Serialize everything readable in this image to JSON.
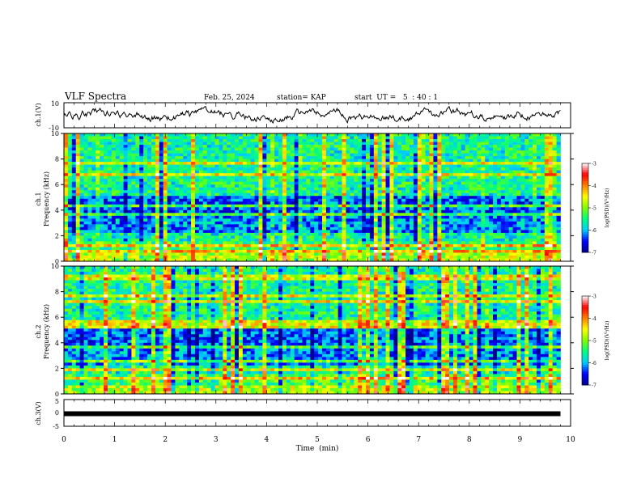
{
  "header": {
    "title": "VLF Spectra",
    "date": "Feb. 25, 2024",
    "station": "station= KAP",
    "start": "start  UT =   5  : 40 : 1"
  },
  "colors": {
    "background": "#ffffff",
    "axis": "#000000",
    "colormap": [
      "#00008b",
      "#0000ff",
      "#00ccff",
      "#00ff80",
      "#80ff00",
      "#ffff00",
      "#ff8000",
      "#ff0000",
      "#ffffff"
    ]
  },
  "chart_data": [
    {
      "panel": "ch1-waveform",
      "type": "line",
      "ylabel": "ch.1(V)",
      "ylim": [
        -10,
        10
      ],
      "yticks": [
        "10",
        "-10"
      ],
      "xlim": [
        0,
        10
      ],
      "x_units": "min",
      "envelope_note": "continuous noisy trace, approx between -7 and +7 V"
    },
    {
      "panel": "ch1-spectrogram",
      "type": "heatmap",
      "ylabel": "ch.1\nFrequency  (kHz)",
      "ylabel_lines": [
        "ch.1",
        "Frequency  (kHz)"
      ],
      "ylim": [
        0,
        10
      ],
      "yticks": [
        "0",
        "2",
        "4",
        "6",
        "8",
        "10"
      ],
      "xlim": [
        0,
        10
      ],
      "colorbar": {
        "label": "log(PSD)(V²/Hz)",
        "range": [
          -7,
          -3
        ],
        "ticks": [
          "-3",
          "-4",
          "-5",
          "-6",
          "-7"
        ]
      },
      "data_extent_min": 9.8
    },
    {
      "panel": "ch2-spectrogram",
      "type": "heatmap",
      "ylabel_lines": [
        "ch.2",
        "Frequency  (kHz)"
      ],
      "ylim": [
        0,
        10
      ],
      "yticks": [
        "0",
        "2",
        "4",
        "6",
        "8",
        "10"
      ],
      "xlim": [
        0,
        10
      ],
      "colorbar": {
        "label": "log(PSD)(V²/Hz)",
        "range": [
          -7,
          -3
        ],
        "ticks": [
          "-3",
          "-4",
          "-5",
          "-6",
          "-7"
        ]
      },
      "data_extent_min": 9.8
    },
    {
      "panel": "ch3-waveform",
      "type": "line",
      "ylabel": "ch.3(V)",
      "ylim": [
        -5,
        5
      ],
      "yticks": [
        "5",
        "0",
        "-5"
      ],
      "xlim": [
        0,
        10
      ],
      "xlabel": "Time  (min)",
      "xticks": [
        "0",
        "1",
        "2",
        "3",
        "4",
        "5",
        "6",
        "7",
        "8",
        "9",
        "10"
      ],
      "level_value_v": -0.3,
      "data_extent_min": 9.8
    }
  ]
}
